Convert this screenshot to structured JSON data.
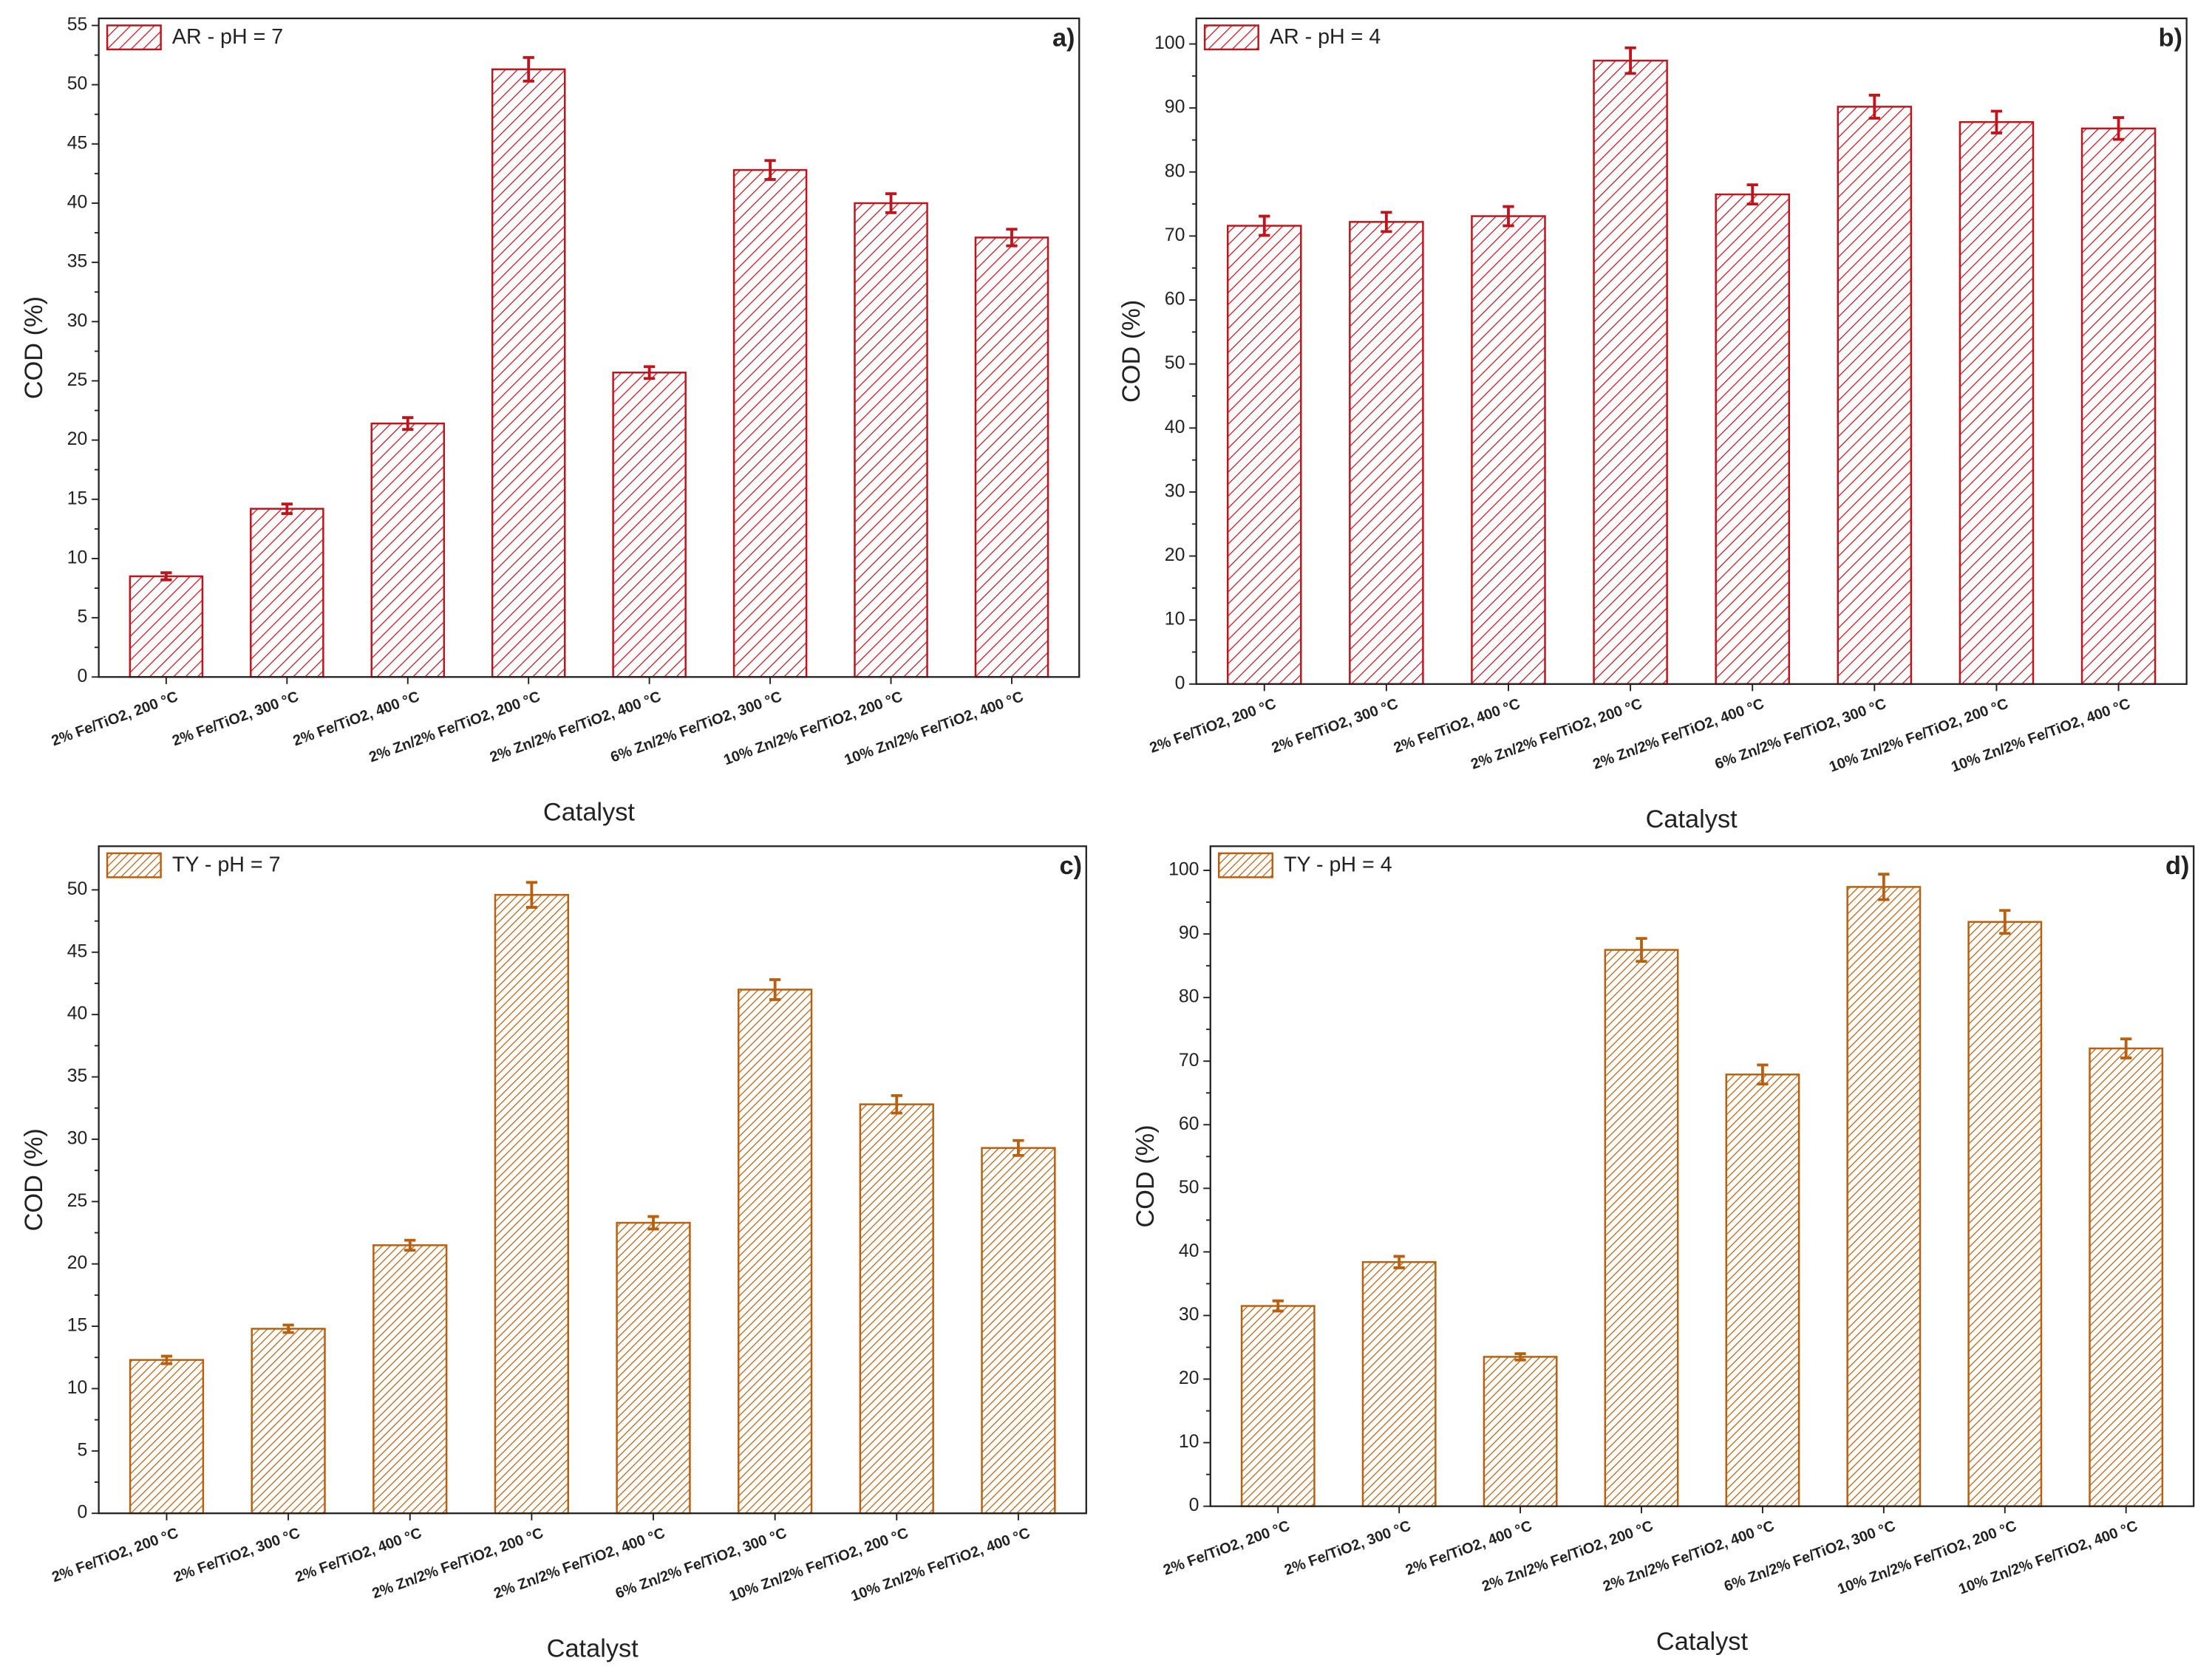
{
  "chart_data": [
    {
      "type": "bar",
      "panel_label": "a)",
      "x_label": "Catalyst",
      "y_label": "COD (%)",
      "categories": [
        "2% Fe/TiO2, 200 °C",
        "2% Fe/TiO2, 300 °C",
        "2% Fe/TiO2, 400 °C",
        "2% Zn/2% Fe/TiO2, 200 °C",
        "2% Zn/2% Fe/TiO2, 400 °C",
        "6% Zn/2% Fe/TiO2, 300 °C",
        "10% Zn/2% Fe/TiO2, 200 °C",
        "10% Zn/2% Fe/TiO2, 400 °C"
      ],
      "series": [
        {
          "name": "AR - pH = 7",
          "color": "#c0141c",
          "values": [
            8.5,
            14.2,
            21.4,
            51.3,
            25.7,
            42.8,
            40.0,
            37.1
          ],
          "errors": [
            0.3,
            0.4,
            0.5,
            1.0,
            0.5,
            0.8,
            0.8,
            0.7
          ]
        }
      ],
      "ylim": [
        0,
        55.6
      ],
      "yticks": [
        0,
        5,
        10,
        15,
        20,
        25,
        30,
        35,
        40,
        45,
        50,
        55
      ]
    },
    {
      "type": "bar",
      "panel_label": "b)",
      "x_label": "Catalyst",
      "y_label": "COD (%)",
      "categories": [
        "2% Fe/TiO2, 200 °C",
        "2% Fe/TiO2, 300 °C",
        "2% Fe/TiO2, 400 °C",
        "2% Zn/2% Fe/TiO2, 200 °C",
        "2% Zn/2% Fe/TiO2, 400 °C",
        "6% Zn/2% Fe/TiO2, 300 °C",
        "10% Zn/2% Fe/TiO2, 200 °C",
        "10% Zn/2% Fe/TiO2, 400 °C"
      ],
      "series": [
        {
          "name": "AR - pH = 4",
          "color": "#c0141c",
          "values": [
            71.6,
            72.2,
            73.1,
            97.4,
            76.5,
            90.2,
            87.8,
            86.8
          ],
          "errors": [
            1.5,
            1.5,
            1.5,
            2.0,
            1.5,
            1.8,
            1.7,
            1.7
          ]
        }
      ],
      "ylim": [
        0,
        104
      ],
      "yticks": [
        0,
        10,
        20,
        30,
        40,
        50,
        60,
        70,
        80,
        90,
        100
      ]
    },
    {
      "type": "bar",
      "panel_label": "c)",
      "x_label": "Catalyst",
      "y_label": "COD (%)",
      "categories": [
        "2% Fe/TiO2, 200 °C",
        "2% Fe/TiO2, 300 °C",
        "2% Fe/TiO2, 400 °C",
        "2% Zn/2% Fe/TiO2, 200 °C",
        "2% Zn/2% Fe/TiO2, 400 °C",
        "6% Zn/2% Fe/TiO2, 300 °C",
        "10% Zn/2% Fe/TiO2, 200 °C",
        "10% Zn/2% Fe/TiO2, 400 °C"
      ],
      "series": [
        {
          "name": "TY - pH = 7",
          "color": "#b8600f",
          "values": [
            12.3,
            14.8,
            21.5,
            49.6,
            23.3,
            42.0,
            32.8,
            29.3
          ],
          "errors": [
            0.3,
            0.3,
            0.4,
            1.0,
            0.5,
            0.8,
            0.7,
            0.6
          ]
        }
      ],
      "ylim": [
        0,
        53.5
      ],
      "yticks": [
        0,
        5,
        10,
        15,
        20,
        25,
        30,
        35,
        40,
        45,
        50
      ]
    },
    {
      "type": "bar",
      "panel_label": "d)",
      "x_label": "Catalyst",
      "y_label": "COD (%)",
      "categories": [
        "2% Fe/TiO2, 200 °C",
        "2% Fe/TiO2, 300 °C",
        "2% Fe/TiO2, 400 °C",
        "2% Zn/2% Fe/TiO2, 200 °C",
        "2% Zn/2% Fe/TiO2, 400 °C",
        "6% Zn/2% Fe/TiO2, 300 °C",
        "10% Zn/2% Fe/TiO2, 200 °C",
        "10% Zn/2% Fe/TiO2, 400 °C"
      ],
      "series": [
        {
          "name": "TY - pH = 4",
          "color": "#b8600f",
          "values": [
            31.5,
            38.4,
            23.5,
            87.5,
            67.9,
            97.4,
            91.9,
            72.0
          ],
          "errors": [
            0.8,
            0.9,
            0.5,
            1.8,
            1.5,
            2.0,
            1.8,
            1.5
          ]
        }
      ],
      "ylim": [
        0,
        103.8
      ],
      "yticks": [
        0,
        10,
        20,
        30,
        40,
        50,
        60,
        70,
        80,
        90,
        100
      ]
    }
  ]
}
